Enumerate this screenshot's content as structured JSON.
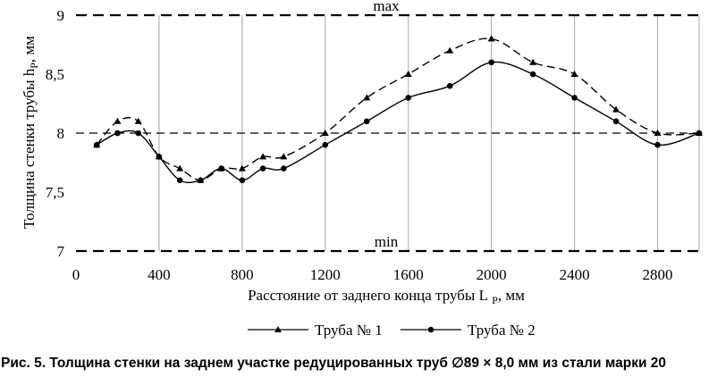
{
  "chart_data": {
    "type": "line",
    "xlabel": "Расстояние от заднего конца трубы L",
    "xlabel_sub": "P",
    "xlabel_unit": ", мм",
    "ylabel": "Толщина стенки трубы h",
    "ylabel_sub": "P",
    "ylabel_unit": ", мм",
    "xlim": [
      0,
      3000
    ],
    "ylim": [
      7,
      9
    ],
    "x_ticks": [
      0,
      400,
      800,
      1200,
      1600,
      2000,
      2400,
      2800
    ],
    "y_ticks": [
      7,
      7.5,
      8,
      8.5,
      9
    ],
    "y_tick_labels": [
      "7",
      "7,5",
      "8",
      "8,5",
      "9"
    ],
    "grid": "vertical",
    "legend_position": "bottom",
    "limits": [
      {
        "label": "max",
        "value": 9
      },
      {
        "label": "",
        "value": 8
      },
      {
        "label": "min",
        "value": 7
      }
    ],
    "series": [
      {
        "name": "Труба № 1",
        "marker": "triangle",
        "line": "dashed",
        "x": [
          100,
          200,
          300,
          400,
          500,
          600,
          700,
          800,
          900,
          1000,
          1200,
          1400,
          1600,
          1800,
          2000,
          2200,
          2400,
          2600,
          2800,
          3000
        ],
        "y": [
          7.9,
          8.1,
          8.1,
          7.8,
          7.7,
          7.6,
          7.7,
          7.7,
          7.8,
          7.8,
          8.0,
          8.3,
          8.5,
          8.7,
          8.8,
          8.6,
          8.5,
          8.2,
          8.0,
          8.0
        ]
      },
      {
        "name": "Труба № 2",
        "marker": "circle",
        "line": "solid",
        "x": [
          100,
          200,
          300,
          400,
          500,
          600,
          700,
          800,
          900,
          1000,
          1200,
          1400,
          1600,
          1800,
          2000,
          2200,
          2400,
          2600,
          2800,
          3000
        ],
        "y": [
          7.9,
          8.0,
          8.0,
          7.8,
          7.6,
          7.6,
          7.7,
          7.6,
          7.7,
          7.7,
          7.9,
          8.1,
          8.3,
          8.4,
          8.6,
          8.5,
          8.3,
          8.1,
          7.9,
          8.0
        ]
      }
    ]
  },
  "caption": "Рис. 5. Толщина стенки на заднем участке редуцированных труб ∅89 × 8,0 мм из стали марки 20"
}
